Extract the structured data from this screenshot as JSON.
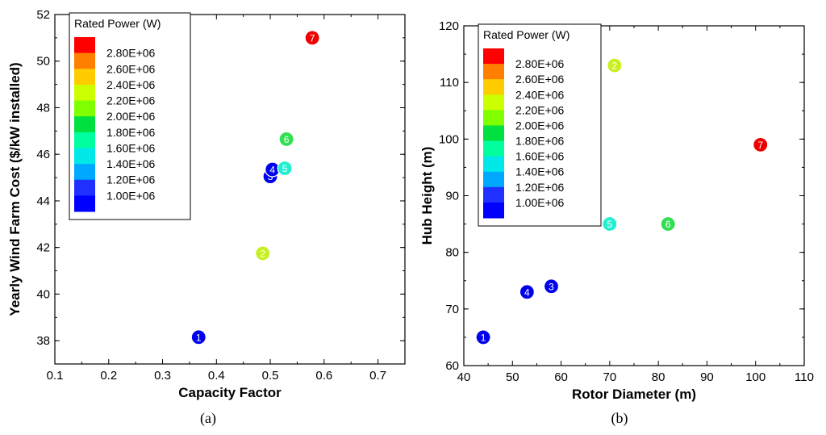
{
  "chart_data": [
    {
      "type": "scatter",
      "subfigure_label": "(a)",
      "xlabel": "Capacity Factor",
      "ylabel": "Yearly Wind Farm Cost ($/kW installed)",
      "xlim": [
        0.1,
        0.75
      ],
      "ylim": [
        37,
        52
      ],
      "xticks": [
        "0.1",
        "0.2",
        "0.3",
        "0.4",
        "0.5",
        "0.6",
        "0.7"
      ],
      "yticks": [
        "38",
        "40",
        "42",
        "44",
        "46",
        "48",
        "50",
        "52"
      ],
      "legend": {
        "title": "Rated Power (W)",
        "entries": [
          "2.80E+06",
          "2.60E+06",
          "2.40E+06",
          "2.20E+06",
          "2.00E+06",
          "1.80E+06",
          "1.60E+06",
          "1.40E+06",
          "1.20E+06",
          "1.00E+06"
        ],
        "colors": [
          "#ff0000",
          "#ff7f00",
          "#ffcc00",
          "#ccff00",
          "#7fff00",
          "#00e040",
          "#00ff9f",
          "#00e8e8",
          "#00a8ff",
          "#2030ff",
          "#0000ff"
        ]
      },
      "points": [
        {
          "label": "1",
          "x": 0.367,
          "y": 38.15,
          "color": "#0000ee"
        },
        {
          "label": "2",
          "x": 0.486,
          "y": 41.75,
          "color": "#c8f020"
        },
        {
          "label": "3",
          "x": 0.5,
          "y": 45.05,
          "color": "#0000ee"
        },
        {
          "label": "4",
          "x": 0.504,
          "y": 45.35,
          "color": "#0000ee"
        },
        {
          "label": "5",
          "x": 0.527,
          "y": 45.4,
          "color": "#20f0d0"
        },
        {
          "label": "6",
          "x": 0.53,
          "y": 46.65,
          "color": "#30e050"
        },
        {
          "label": "7",
          "x": 0.578,
          "y": 51.0,
          "color": "#ee0000"
        }
      ]
    },
    {
      "type": "scatter",
      "subfigure_label": "(b)",
      "xlabel": "Rotor Diameter (m)",
      "ylabel": "Hub Height (m)",
      "xlim": [
        40,
        110
      ],
      "ylim": [
        60,
        120
      ],
      "xticks": [
        "40",
        "50",
        "60",
        "70",
        "80",
        "90",
        "100",
        "110"
      ],
      "yticks": [
        "60",
        "70",
        "80",
        "90",
        "100",
        "110",
        "120"
      ],
      "legend": {
        "title": "Rated Power (W)",
        "entries": [
          "2.80E+06",
          "2.60E+06",
          "2.40E+06",
          "2.20E+06",
          "2.00E+06",
          "1.80E+06",
          "1.60E+06",
          "1.40E+06",
          "1.20E+06",
          "1.00E+06"
        ],
        "colors": [
          "#ff0000",
          "#ff7f00",
          "#ffcc00",
          "#ccff00",
          "#7fff00",
          "#00e040",
          "#00ff9f",
          "#00e8e8",
          "#00a8ff",
          "#2030ff",
          "#0000ff"
        ]
      },
      "points": [
        {
          "label": "1",
          "x": 44,
          "y": 65,
          "color": "#0000ee"
        },
        {
          "label": "2",
          "x": 71,
          "y": 113,
          "color": "#c8f020"
        },
        {
          "label": "3",
          "x": 58,
          "y": 74,
          "color": "#0000ee"
        },
        {
          "label": "4",
          "x": 53,
          "y": 73,
          "color": "#0000ee"
        },
        {
          "label": "5",
          "x": 70,
          "y": 85,
          "color": "#20f0d0"
        },
        {
          "label": "6",
          "x": 82,
          "y": 85,
          "color": "#30e050"
        },
        {
          "label": "7",
          "x": 101,
          "y": 99,
          "color": "#ee0000"
        }
      ]
    }
  ]
}
